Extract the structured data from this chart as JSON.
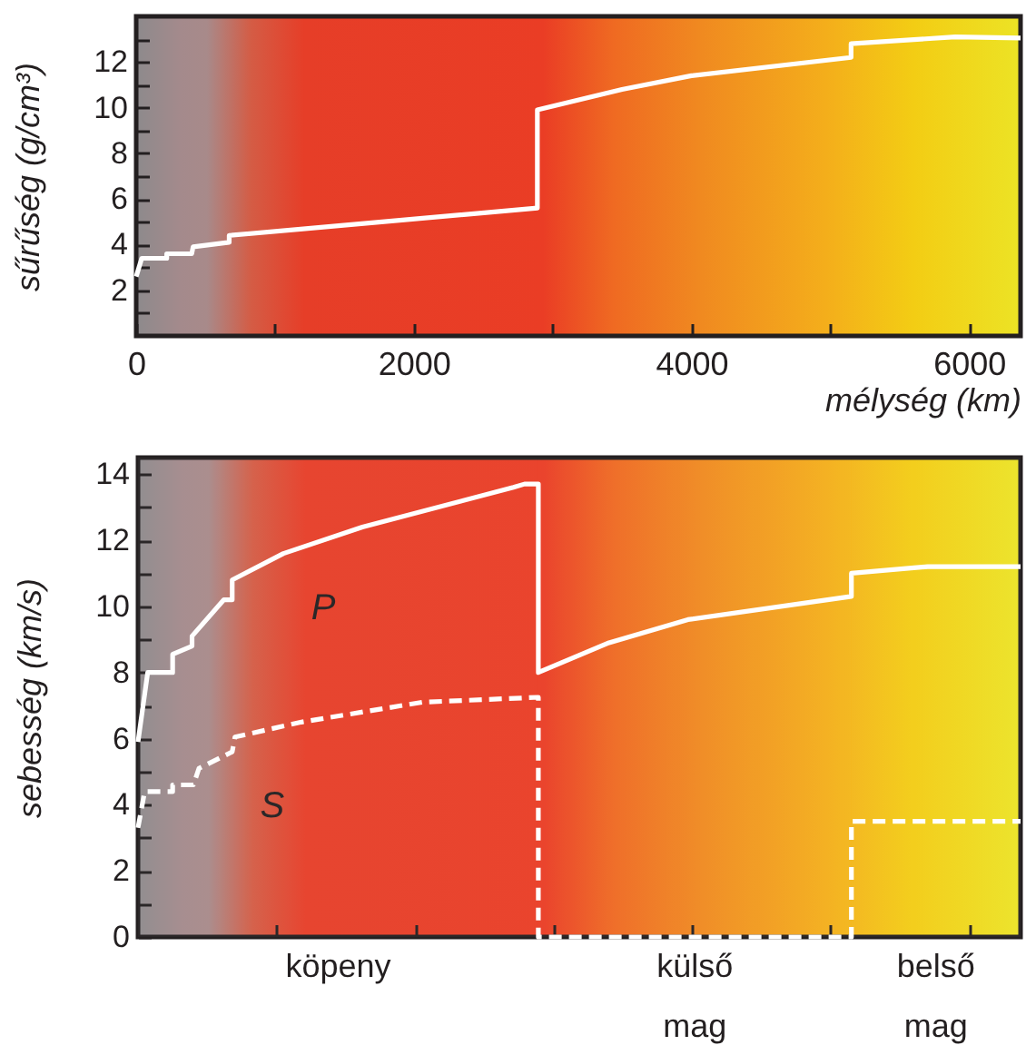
{
  "chart_data": [
    {
      "type": "line",
      "xlabel": "mélység (km)",
      "ylabel": "sűrűség (g/cm³)",
      "xlim": [
        0,
        6371
      ],
      "ylim": [
        0,
        14
      ],
      "xticks": [
        0,
        {
          "value": 1000,
          "label": null
        },
        2000,
        {
          "value": 3000,
          "label": null
        },
        4000,
        {
          "value": 5000,
          "label": null
        },
        6000
      ],
      "yticks": [
        {
          "value": 1,
          "label": null
        },
        2,
        {
          "value": 3,
          "label": null
        },
        4,
        {
          "value": 5,
          "label": null
        },
        6,
        {
          "value": 7,
          "label": null
        },
        8,
        {
          "value": 9,
          "label": null
        },
        10,
        {
          "value": 11,
          "label": null
        },
        12,
        {
          "value": 13,
          "label": null
        }
      ],
      "series": [
        {
          "color": "#ffffff",
          "line_style": "solid",
          "x": [
            0,
            40,
            220,
            220,
            400,
            410,
            670,
            670,
            2890,
            2890,
            3500,
            4000,
            5150,
            5150,
            5900,
            6371
          ],
          "values": [
            2.6,
            3.4,
            3.4,
            3.6,
            3.6,
            3.9,
            4.1,
            4.4,
            5.6,
            9.9,
            10.8,
            11.4,
            12.2,
            12.8,
            13.1,
            13.05
          ]
        }
      ]
    },
    {
      "type": "line",
      "ylabel": "sebesség (km/s)",
      "xlim": [
        0,
        6371
      ],
      "ylim": [
        0,
        14.5
      ],
      "tick_labels": "y",
      "xticks": [
        {
          "value": 1000,
          "label": null
        },
        {
          "value": 2000,
          "label": null
        },
        {
          "value": 3000,
          "label": null
        },
        {
          "value": 4000,
          "label": null
        },
        {
          "value": 5000,
          "label": null
        },
        {
          "value": 6000,
          "label": null
        }
      ],
      "yticks": [
        0,
        {
          "value": 1,
          "label": null
        },
        2,
        {
          "value": 3,
          "label": null
        },
        4,
        {
          "value": 5,
          "label": null
        },
        6,
        {
          "value": 7,
          "label": null
        },
        8,
        {
          "value": 9,
          "label": null
        },
        10,
        {
          "value": 11,
          "label": null
        },
        12,
        {
          "value": 13,
          "label": null
        },
        14
      ],
      "bands": [
        {
          "axis": "x",
          "from": 0,
          "to": 2890,
          "label": "köpeny"
        },
        {
          "axis": "x",
          "from": 2890,
          "to": 5150,
          "label": "külső mag"
        },
        {
          "axis": "x",
          "from": 5150,
          "to": 6371,
          "label": "belső mag"
        }
      ],
      "series": [
        {
          "name": "P",
          "color": "#ffffff",
          "line_style": "solid",
          "x": [
            0,
            70,
            250,
            250,
            390,
            390,
            620,
            680,
            680,
            1050,
            1620,
            2710,
            2790,
            2890,
            2890,
            3400,
            3970,
            5150,
            5150,
            5700,
            6371
          ],
          "values": [
            5.9,
            8.0,
            8.0,
            8.55,
            8.8,
            9.1,
            10.2,
            10.2,
            10.8,
            11.6,
            12.4,
            13.6,
            13.7,
            13.7,
            8.0,
            8.9,
            9.6,
            10.3,
            11.0,
            11.2,
            11.2
          ]
        },
        {
          "name": "S",
          "color": "#ffffff",
          "line_style": "dashed",
          "x": [
            0,
            48,
            250,
            250,
            400,
            440,
            680,
            700,
            1180,
            2050,
            2890,
            2890,
            5150,
            5150,
            6371
          ],
          "values": [
            3.3,
            4.4,
            4.4,
            4.6,
            4.6,
            5.1,
            5.6,
            6.05,
            6.5,
            7.1,
            7.25,
            0,
            0,
            3.5,
            3.5
          ]
        }
      ]
    }
  ]
}
